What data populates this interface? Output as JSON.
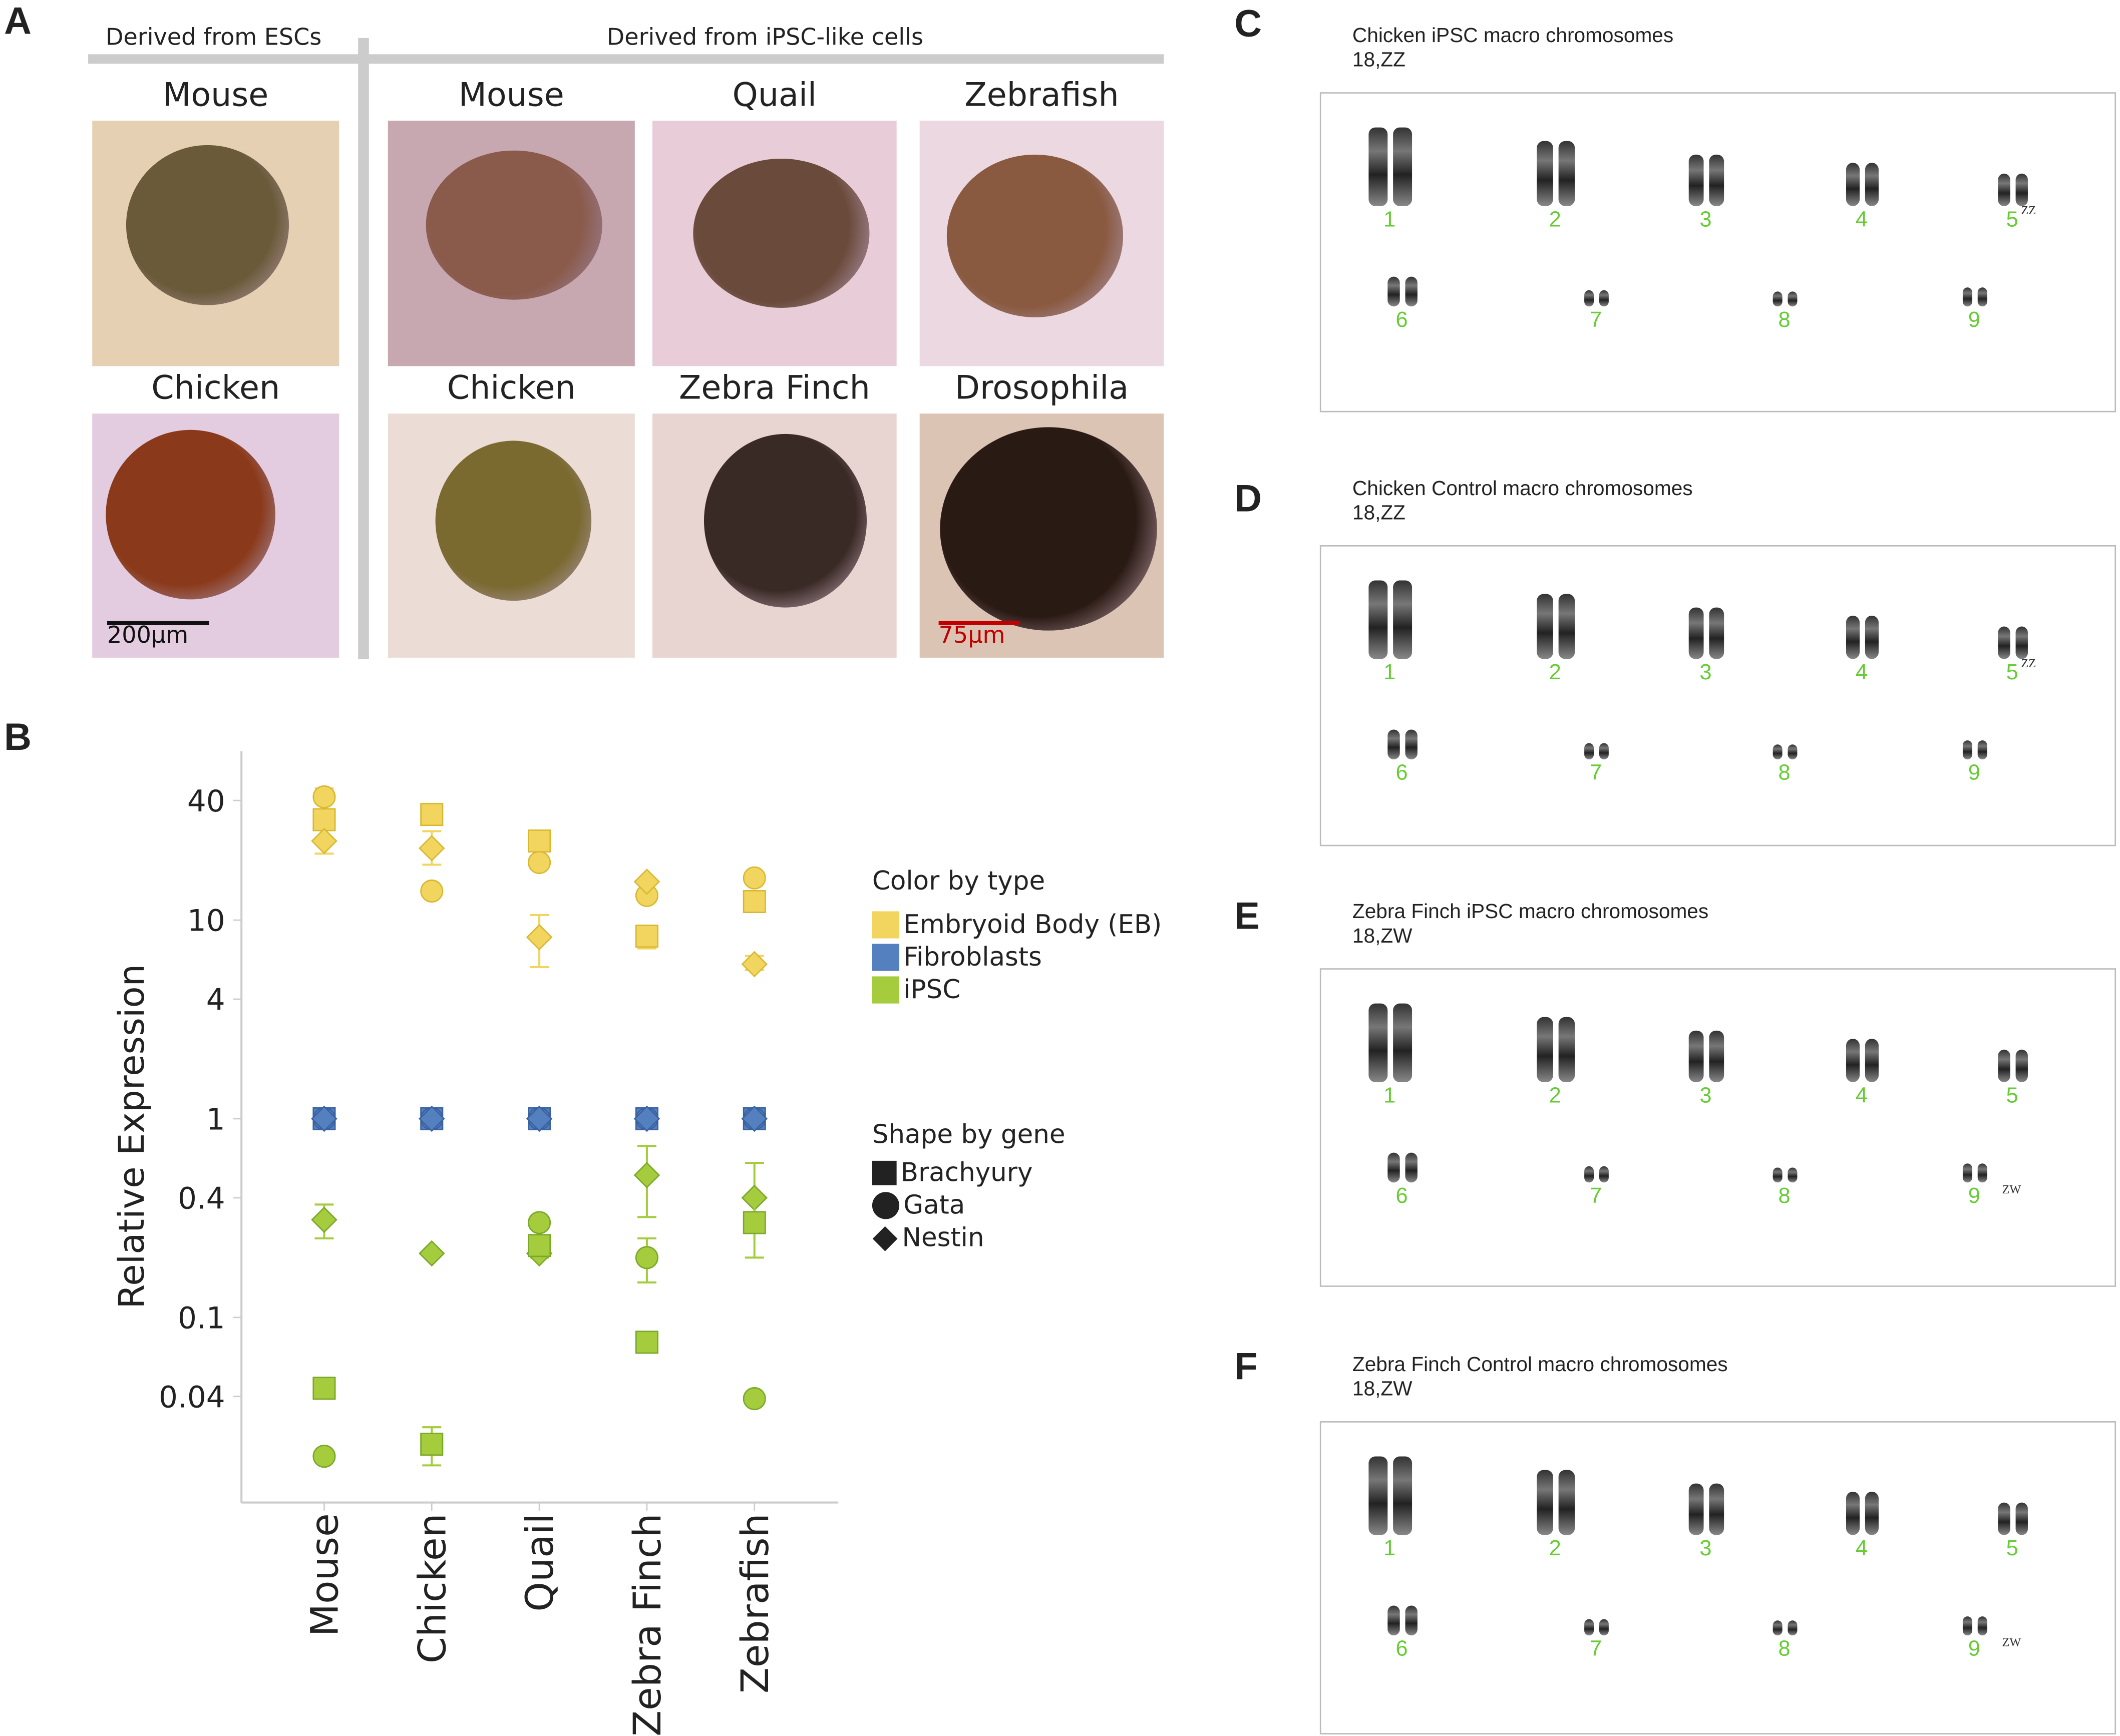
{
  "panel_labels": {
    "a": "A",
    "b": "B",
    "c": "C",
    "d": "D",
    "e": "E",
    "f": "F"
  },
  "panel_a": {
    "header_esc": "Derived from ESCs",
    "header_ipsc": "Derived from iPSC-like cells",
    "images": [
      {
        "label": "Mouse",
        "bg": "#e6d0b4",
        "cell": "#6a5a3a"
      },
      {
        "label": "Mouse",
        "bg": "#c8a8b0",
        "cell": "#8a5a4a"
      },
      {
        "label": "Quail",
        "bg": "#e8ccd8",
        "cell": "#6a4a3a"
      },
      {
        "label": "Zebrafish",
        "bg": "#ecd8e0",
        "cell": "#8a5a40"
      },
      {
        "label": "Chicken",
        "bg": "#e4cce0",
        "cell": "#8a3a1a"
      },
      {
        "label": "Chicken",
        "bg": "#ecdcd6",
        "cell": "#7a6a30"
      },
      {
        "label": "Zebra Finch",
        "bg": "#e8d4d0",
        "cell": "#3a2a26"
      },
      {
        "label": "Drosophila",
        "bg": "#dcc4b4",
        "cell": "#2a1a14"
      }
    ],
    "scalebar_1": "200µm",
    "scalebar_2": "75µm",
    "scalebar_2_color": "#c00000"
  },
  "chart_data": {
    "type": "scatter",
    "ylabel": "Relative Expression",
    "yscale": "log",
    "ylim": [
      0.0115,
      73
    ],
    "yticks": [
      {
        "v": 40,
        "label": "40"
      },
      {
        "v": 10,
        "label": "10"
      },
      {
        "v": 4,
        "label": "4"
      },
      {
        "v": 1,
        "label": "1"
      },
      {
        "v": 0.4,
        "label": "0.4"
      },
      {
        "v": 0.1,
        "label": "0.1"
      },
      {
        "v": 0.04,
        "label": "0.04"
      }
    ],
    "categories": [
      "Mouse",
      "Chicken",
      "Quail",
      "Zebra Finch",
      "Zebrafish"
    ],
    "grid": false,
    "legend_color_title": "Color by type",
    "legend_shape_title": "Shape by gene",
    "types": [
      {
        "name": "Embryoid Body (EB)",
        "color": "#f2d55e"
      },
      {
        "name": "Fibroblasts",
        "color": "#5580c0"
      },
      {
        "name": "iPSC",
        "color": "#a4cc3c"
      }
    ],
    "genes": [
      {
        "name": "Brachyury",
        "shape": "square"
      },
      {
        "name": "Gata",
        "shape": "circle"
      },
      {
        "name": "Nestin",
        "shape": "diamond"
      }
    ],
    "series": [
      {
        "type": "Embryoid Body (EB)",
        "gene": "Gata",
        "values": [
          41.7,
          14,
          19.5,
          13.3,
          16.3
        ],
        "err": [
          [
            21.6,
            46
          ],
          null,
          null,
          null,
          null
        ]
      },
      {
        "type": "Embryoid Body (EB)",
        "gene": "Brachyury",
        "values": [
          32,
          34,
          25,
          8.3,
          12.4
        ],
        "err": [
          null,
          null,
          null,
          [
            7.2,
            9
          ],
          null
        ]
      },
      {
        "type": "Embryoid Body (EB)",
        "gene": "Nestin",
        "values": [
          25,
          23,
          8.2,
          15.6,
          6.0
        ],
        "err": [
          null,
          [
            19,
            28
          ],
          [
            5.8,
            10.6
          ],
          null,
          [
            5.6,
            6.6
          ]
        ]
      },
      {
        "type": "Fibroblasts",
        "gene": "Brachyury",
        "values": [
          1,
          1,
          1,
          1,
          1
        ],
        "err": [
          null,
          null,
          null,
          null,
          null
        ]
      },
      {
        "type": "Fibroblasts",
        "gene": "Gata",
        "values": [
          1,
          1,
          1,
          1,
          1
        ],
        "err": [
          null,
          null,
          null,
          null,
          null
        ]
      },
      {
        "type": "Fibroblasts",
        "gene": "Nestin",
        "values": [
          1,
          1,
          1,
          1,
          1
        ],
        "err": [
          null,
          null,
          null,
          null,
          null
        ]
      },
      {
        "type": "iPSC",
        "gene": "Nestin",
        "values": [
          0.31,
          0.21,
          0.21,
          0.52,
          0.4
        ],
        "err": [
          [
            0.25,
            0.37
          ],
          null,
          [
            0.2,
            0.23
          ],
          [
            0.32,
            0.73
          ],
          [
            0.3,
            0.6
          ]
        ]
      },
      {
        "type": "iPSC",
        "gene": "Brachyury",
        "values": [
          0.044,
          0.023,
          0.23,
          0.075,
          0.3
        ],
        "err": [
          null,
          [
            0.018,
            0.028
          ],
          null,
          null,
          [
            0.2,
            0.4
          ]
        ]
      },
      {
        "type": "iPSC",
        "gene": "Gata",
        "values": [
          0.02,
          null,
          0.3,
          0.2,
          0.039
        ],
        "err": [
          null,
          null,
          null,
          [
            0.15,
            0.25
          ],
          null
        ]
      }
    ]
  },
  "karyotypes": [
    {
      "title": "Chicken iPSC macro chromosomes",
      "karyotype": "18,ZZ",
      "labels": [
        "1",
        "2",
        "3",
        "4",
        "5",
        "6",
        "7",
        "8",
        "9"
      ],
      "sup_index": 4,
      "sup": "ZZ"
    },
    {
      "title": "Chicken  Control macro chromosomes",
      "karyotype": "18,ZZ",
      "labels": [
        "1",
        "2",
        "3",
        "4",
        "5",
        "6",
        "7",
        "8",
        "9"
      ],
      "sup_index": 4,
      "sup": "ZZ"
    },
    {
      "title": "Zebra Finch iPSC macro chromosomes",
      "karyotype": "18,ZW",
      "labels": [
        "1",
        "2",
        "3",
        "4",
        "5",
        "6",
        "7",
        "8",
        "9"
      ],
      "sup_index": 8,
      "sup": "ZW"
    },
    {
      "title": "Zebra Finch Control macro chromosomes",
      "karyotype": "18,ZW",
      "labels": [
        "1",
        "2",
        "3",
        "4",
        "5",
        "6",
        "7",
        "8",
        "9"
      ],
      "sup_index": 8,
      "sup": "ZW"
    }
  ]
}
